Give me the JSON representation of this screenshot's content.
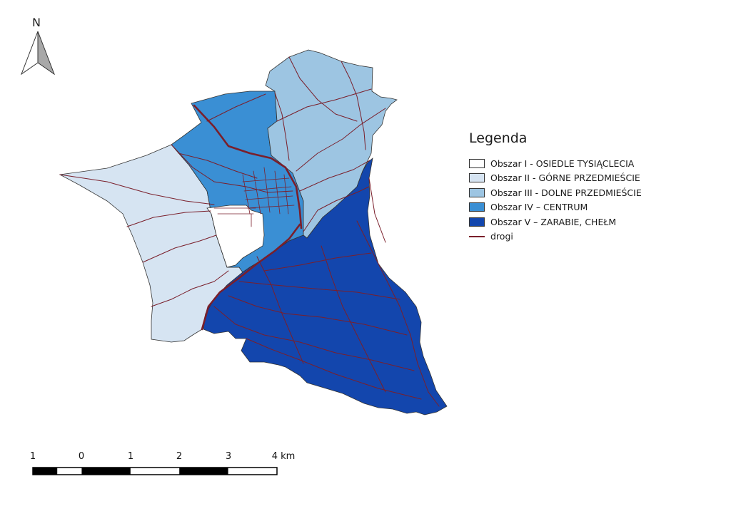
{
  "north_arrow": {
    "label": "N",
    "icon": "north-arrow-icon"
  },
  "legend": {
    "title": "Legenda",
    "items": [
      {
        "label": "Obszar I - OSIEDLE TYSIĄCLECIA",
        "color": "#ffffff",
        "type": "fill"
      },
      {
        "label": "Obszar II - GÓRNE PRZEDMIEŚCIE",
        "color": "#d6e4f2",
        "type": "fill"
      },
      {
        "label": "Obszar III - DOLNE PRZEDMIEŚCIE",
        "color": "#9dc5e2",
        "type": "fill"
      },
      {
        "label": "Obszar IV – CENTRUM",
        "color": "#3a8fd4",
        "type": "fill"
      },
      {
        "label": "Obszar V – ZARABIE, CHEŁM",
        "color": "#1346ad",
        "type": "fill"
      },
      {
        "label": "drogi",
        "color": "#7a1f2b",
        "type": "line"
      }
    ]
  },
  "scale_bar": {
    "labels": [
      "1",
      "0",
      "1",
      "2",
      "3",
      "4 km"
    ]
  },
  "colors": {
    "road": "#7a1f2b",
    "outline": "#333333"
  }
}
